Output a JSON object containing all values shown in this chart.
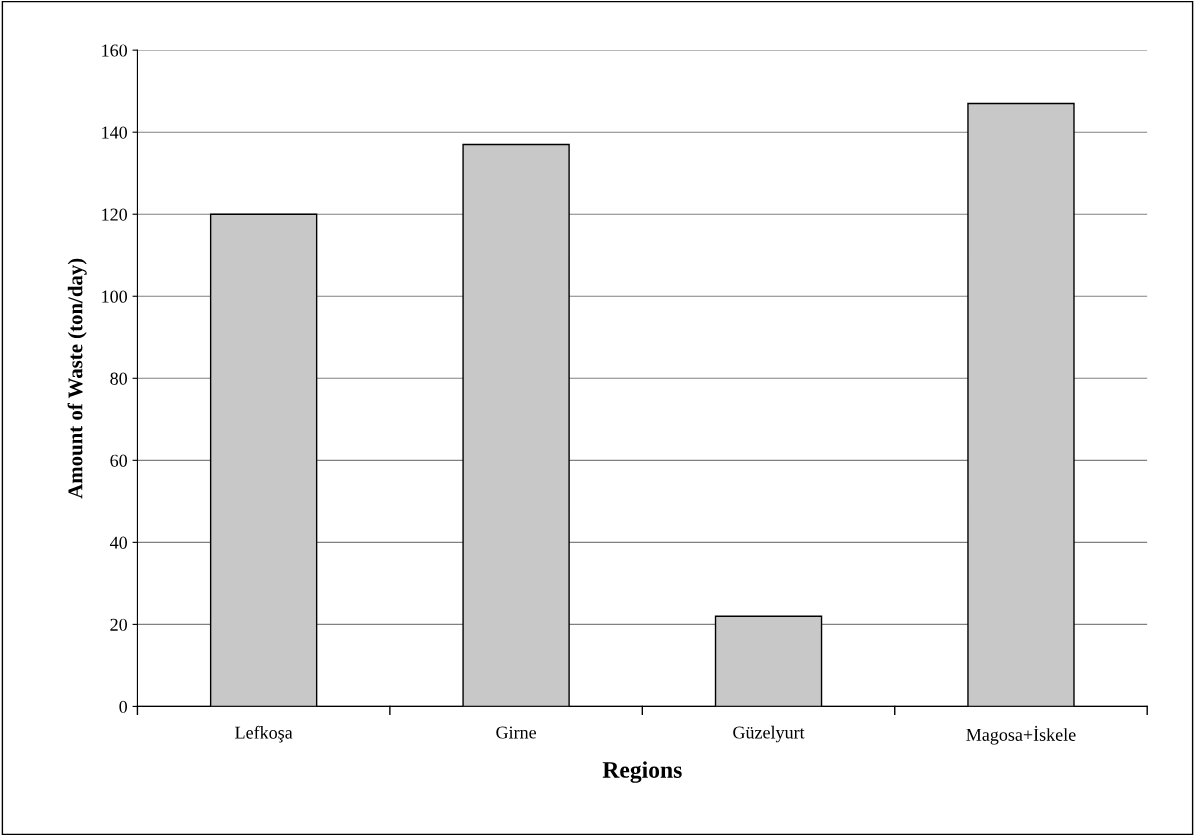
{
  "chart_data": {
    "type": "bar",
    "xlabel": "Regions",
    "ylabel": "Amount of Waste (ton/day)",
    "categories": [
      "Lefkoşa",
      "Girne",
      "Güzelyurt",
      "Magosa+İskele"
    ],
    "values": [
      120,
      137,
      22,
      147
    ],
    "color": "#c8c8c8",
    "ylim": [
      0,
      160
    ],
    "yticks": [
      0,
      20,
      40,
      60,
      80,
      100,
      120,
      140,
      160
    ],
    "grid": "y",
    "legend": false
  }
}
